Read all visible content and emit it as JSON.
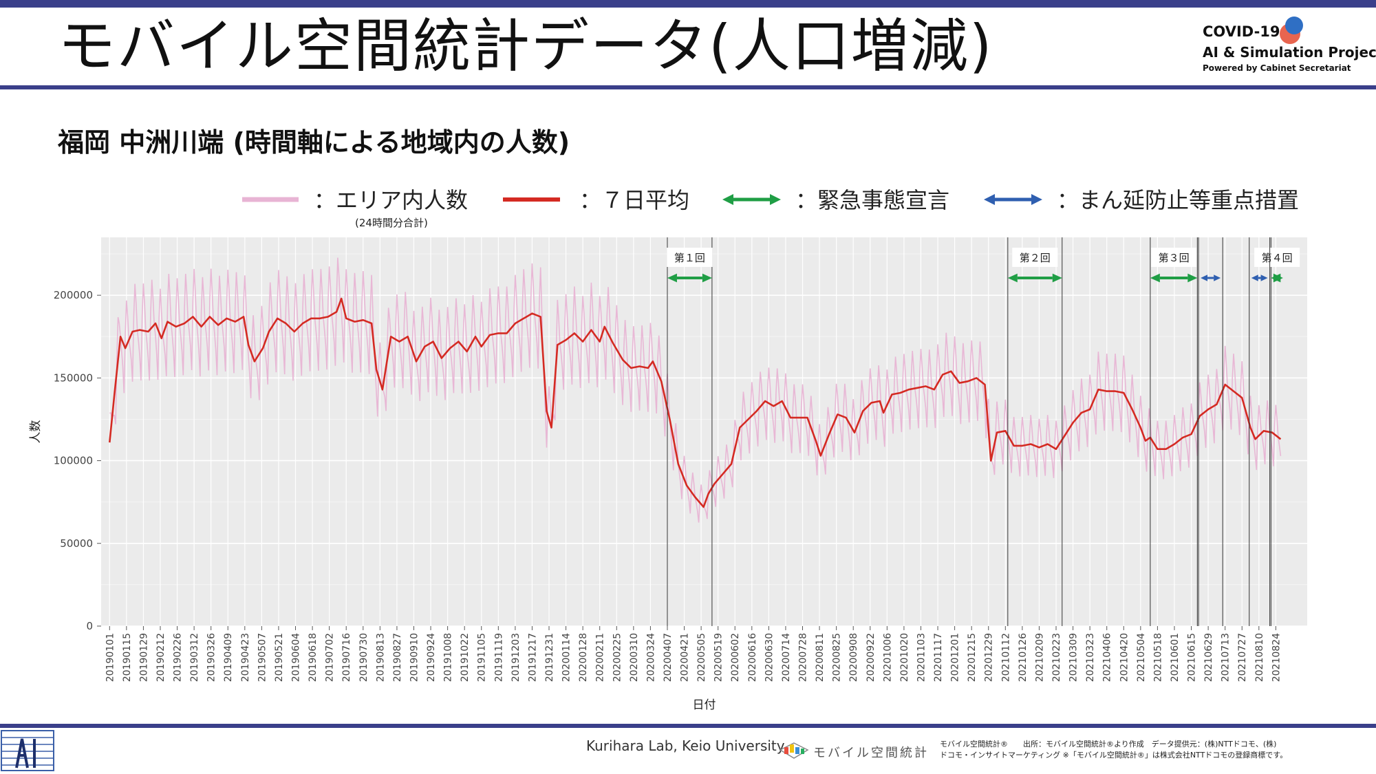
{
  "slide": {
    "title": "モバイル空間統計データ(人口増減)",
    "subtitle": "福岡 中洲川端 (時間軸による地域内の人数)"
  },
  "logo": {
    "line1": "COVID-19",
    "line2": "AI & Simulation Project",
    "line3": "Powered by Cabinet Secretariat"
  },
  "footer": {
    "credit": "Kurihara Lab, Keio University",
    "mobile_logo_text": "モバイル空間統計",
    "source_line1": "モバイル空間統計®　　出所：モバイル空間統計®より作成　データ提供元：(株)NTTドコモ、(株)",
    "source_line2": "ドコモ・インサイトマーケティング ※「モバイル空間統計®」は株式会社NTTドコモの登録商標です。"
  },
  "chart_data": {
    "type": "line",
    "xlabel": "日付",
    "ylabel": "人数",
    "ylim": [
      0,
      235000
    ],
    "yticks": [
      0,
      50000,
      100000,
      150000,
      200000
    ],
    "ytick_labels": [
      "0",
      "50000",
      "100000",
      "150000",
      "200000"
    ],
    "x_tick_labels": [
      "20190101",
      "20190115",
      "20190129",
      "20190212",
      "20190226",
      "20190312",
      "20190326",
      "20190409",
      "20190423",
      "20190507",
      "20190521",
      "20190604",
      "20190618",
      "20190702",
      "20190716",
      "20190730",
      "20190813",
      "20190827",
      "20190910",
      "20190924",
      "20191008",
      "20191022",
      "20191105",
      "20191119",
      "20191203",
      "20191217",
      "20191231",
      "20200114",
      "20200128",
      "20200211",
      "20200225",
      "20200310",
      "20200324",
      "20200407",
      "20200421",
      "20200505",
      "20200519",
      "20200602",
      "20200616",
      "20200630",
      "20200714",
      "20200728",
      "20200811",
      "20200825",
      "20200908",
      "20200922",
      "20201006",
      "20201020",
      "20201103",
      "20201117",
      "20201201",
      "20201215",
      "20201229",
      "20210112",
      "20210126",
      "20210209",
      "20210223",
      "20210309",
      "20210323",
      "20210406",
      "20210420",
      "20210504",
      "20210518",
      "20210601",
      "20210615",
      "20210629",
      "20210713",
      "20210727",
      "20210810",
      "20210824"
    ],
    "grid": true,
    "legend": {
      "daily": {
        "label": "：エリア内人数",
        "sublabel": "(24時間分合計)",
        "color": "#e8b4d4"
      },
      "avg": {
        "label": "：７日平均",
        "color": "#d42a22"
      },
      "emergency": {
        "label": "：緊急事態宣言",
        "color": "#1f9e45"
      },
      "semi": {
        "label": "：まん延防止等重点措置",
        "color": "#2f5fb0"
      }
    },
    "emergency_periods": [
      {
        "label": "第１回",
        "start": "20200407",
        "end": "20200514"
      },
      {
        "label": "第２回",
        "start": "20210114",
        "end": "20210228"
      },
      {
        "label": "第３回",
        "start": "20210512",
        "end": "20210620"
      },
      {
        "label": "第４回",
        "start": "20210820",
        "end": "20210830"
      }
    ],
    "semi_periods": [
      {
        "start": "20210621",
        "end": "20210711"
      },
      {
        "start": "20210802",
        "end": "20210819"
      }
    ],
    "series": [
      {
        "name": "７日平均",
        "style": "avg",
        "color": "#d42a22",
        "points": [
          [
            "20190101",
            111000
          ],
          [
            "20190105",
            140000
          ],
          [
            "20190110",
            175000
          ],
          [
            "20190114",
            168000
          ],
          [
            "20190120",
            178000
          ],
          [
            "20190126",
            179000
          ],
          [
            "20190202",
            178000
          ],
          [
            "20190208",
            183000
          ],
          [
            "20190213",
            174000
          ],
          [
            "20190218",
            184000
          ],
          [
            "20190225",
            181000
          ],
          [
            "20190304",
            183000
          ],
          [
            "20190311",
            187000
          ],
          [
            "20190318",
            181000
          ],
          [
            "20190325",
            187000
          ],
          [
            "20190401",
            182000
          ],
          [
            "20190408",
            186000
          ],
          [
            "20190415",
            184000
          ],
          [
            "20190422",
            187000
          ],
          [
            "20190426",
            170000
          ],
          [
            "20190501",
            160000
          ],
          [
            "20190508",
            168000
          ],
          [
            "20190513",
            178000
          ],
          [
            "20190520",
            186000
          ],
          [
            "20190527",
            183000
          ],
          [
            "20190603",
            178000
          ],
          [
            "20190610",
            183000
          ],
          [
            "20190617",
            186000
          ],
          [
            "20190624",
            186000
          ],
          [
            "20190701",
            187000
          ],
          [
            "20190708",
            190000
          ],
          [
            "20190712",
            198000
          ],
          [
            "20190716",
            186000
          ],
          [
            "20190723",
            184000
          ],
          [
            "20190730",
            185000
          ],
          [
            "20190806",
            183000
          ],
          [
            "20190810",
            155000
          ],
          [
            "20190815",
            143000
          ],
          [
            "20190822",
            175000
          ],
          [
            "20190829",
            172000
          ],
          [
            "20190905",
            175000
          ],
          [
            "20190912",
            160000
          ],
          [
            "20190919",
            169000
          ],
          [
            "20190926",
            172000
          ],
          [
            "20191003",
            162000
          ],
          [
            "20191010",
            168000
          ],
          [
            "20191017",
            172000
          ],
          [
            "20191024",
            166000
          ],
          [
            "20191031",
            175000
          ],
          [
            "20191105",
            169000
          ],
          [
            "20191112",
            176000
          ],
          [
            "20191119",
            177000
          ],
          [
            "20191126",
            177000
          ],
          [
            "20191203",
            183000
          ],
          [
            "20191210",
            186000
          ],
          [
            "20191217",
            189000
          ],
          [
            "20191224",
            187000
          ],
          [
            "20191229",
            130000
          ],
          [
            "20200102",
            120000
          ],
          [
            "20200107",
            170000
          ],
          [
            "20200114",
            173000
          ],
          [
            "20200121",
            177000
          ],
          [
            "20200128",
            172000
          ],
          [
            "20200204",
            179000
          ],
          [
            "20200211",
            172000
          ],
          [
            "20200215",
            181000
          ],
          [
            "20200222",
            171000
          ],
          [
            "20200301",
            161000
          ],
          [
            "20200308",
            156000
          ],
          [
            "20200315",
            157000
          ],
          [
            "20200322",
            156000
          ],
          [
            "20200326",
            160000
          ],
          [
            "20200402",
            148000
          ],
          [
            "20200409",
            125000
          ],
          [
            "20200416",
            98000
          ],
          [
            "20200423",
            85000
          ],
          [
            "20200430",
            78000
          ],
          [
            "20200507",
            72000
          ],
          [
            "20200511",
            80000
          ],
          [
            "20200516",
            86000
          ],
          [
            "20200523",
            92000
          ],
          [
            "20200530",
            98000
          ],
          [
            "20200606",
            120000
          ],
          [
            "20200613",
            125000
          ],
          [
            "20200620",
            130000
          ],
          [
            "20200627",
            136000
          ],
          [
            "20200704",
            133000
          ],
          [
            "20200711",
            136000
          ],
          [
            "20200718",
            126000
          ],
          [
            "20200725",
            126000
          ],
          [
            "20200801",
            126000
          ],
          [
            "20200808",
            112000
          ],
          [
            "20200812",
            103000
          ],
          [
            "20200819",
            116000
          ],
          [
            "20200826",
            128000
          ],
          [
            "20200902",
            126000
          ],
          [
            "20200909",
            117000
          ],
          [
            "20200916",
            130000
          ],
          [
            "20200923",
            135000
          ],
          [
            "20200930",
            136000
          ],
          [
            "20201003",
            129000
          ],
          [
            "20201010",
            140000
          ],
          [
            "20201017",
            141000
          ],
          [
            "20201024",
            143000
          ],
          [
            "20201031",
            144000
          ],
          [
            "20201107",
            145000
          ],
          [
            "20201114",
            143000
          ],
          [
            "20201121",
            152000
          ],
          [
            "20201128",
            154000
          ],
          [
            "20201205",
            147000
          ],
          [
            "20201212",
            148000
          ],
          [
            "20201219",
            150000
          ],
          [
            "20201226",
            146000
          ],
          [
            "20201231",
            100000
          ],
          [
            "20210105",
            117000
          ],
          [
            "20210112",
            118000
          ],
          [
            "20210119",
            109000
          ],
          [
            "20210126",
            109000
          ],
          [
            "20210202",
            110000
          ],
          [
            "20210209",
            108000
          ],
          [
            "20210216",
            110000
          ],
          [
            "20210223",
            107000
          ],
          [
            "20210302",
            115000
          ],
          [
            "20210309",
            123000
          ],
          [
            "20210316",
            129000
          ],
          [
            "20210323",
            131000
          ],
          [
            "20210330",
            143000
          ],
          [
            "20210406",
            142000
          ],
          [
            "20210413",
            142000
          ],
          [
            "20210420",
            141000
          ],
          [
            "20210427",
            131000
          ],
          [
            "20210504",
            120000
          ],
          [
            "20210508",
            112000
          ],
          [
            "20210512",
            114000
          ],
          [
            "20210518",
            107000
          ],
          [
            "20210525",
            107000
          ],
          [
            "20210601",
            110000
          ],
          [
            "20210608",
            114000
          ],
          [
            "20210615",
            116000
          ],
          [
            "20210622",
            127000
          ],
          [
            "20210629",
            131000
          ],
          [
            "20210706",
            134000
          ],
          [
            "20210713",
            146000
          ],
          [
            "20210720",
            142000
          ],
          [
            "20210727",
            138000
          ],
          [
            "20210803",
            120000
          ],
          [
            "20210807",
            113000
          ],
          [
            "20210814",
            118000
          ],
          [
            "20210821",
            117000
          ],
          [
            "20210828",
            113000
          ]
        ]
      }
    ]
  }
}
